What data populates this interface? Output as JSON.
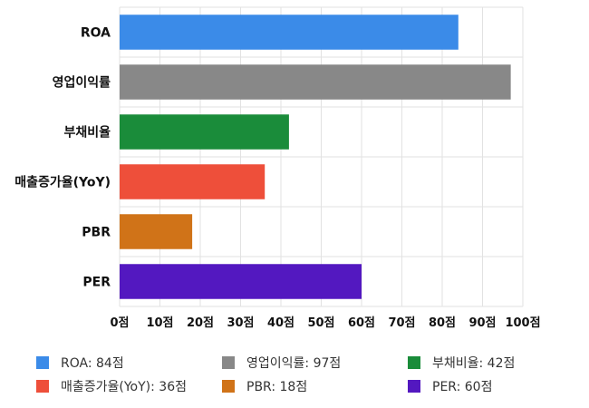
{
  "chart_data": {
    "type": "bar",
    "orientation": "horizontal",
    "categories": [
      "ROA",
      "영업이익률",
      "부채비율",
      "매출증가율(YoY)",
      "PBR",
      "PER"
    ],
    "values": [
      84,
      97,
      42,
      36,
      18,
      60
    ],
    "colors": [
      "#3b8be8",
      "#888888",
      "#1a8c3a",
      "#ee4f3a",
      "#d07318",
      "#5318c0"
    ],
    "xlim": [
      0,
      100
    ],
    "xticks": [
      0,
      10,
      20,
      30,
      40,
      50,
      60,
      70,
      80,
      90,
      100
    ],
    "tick_suffix": "점",
    "grid": true,
    "legend_position": "bottom",
    "legend": [
      "ROA: 84점",
      "영업이익률: 97점",
      "부채비율: 42점",
      "매출증가율(YoY): 36점",
      "PBR: 18점",
      "PER: 60점"
    ]
  }
}
